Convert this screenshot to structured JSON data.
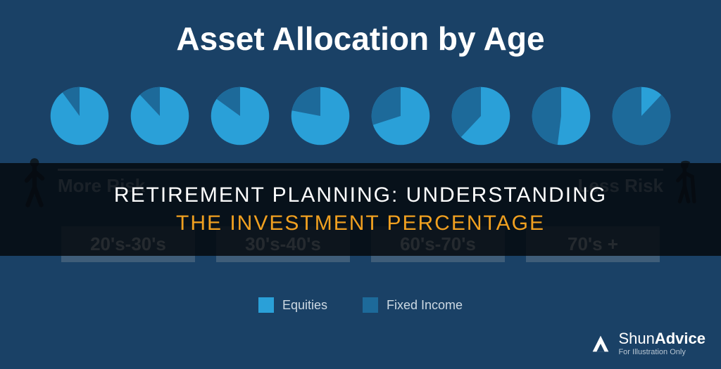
{
  "title": "Asset Allocation by Age",
  "colors": {
    "background": "#1a4166",
    "equities": "#2aa0d8",
    "fixedIncome": "#1d6a9a",
    "cardBg": "#3f5d79",
    "axisText": "#9db2c5",
    "figure": "#0f1b24",
    "overlayBg": "rgba(5,9,14,0.86)",
    "overlayLine1": "#ffffff",
    "overlayLine2": "#f0a020",
    "brand": "#ffffff"
  },
  "pies": [
    {
      "equities": 90,
      "fixedIncome": 10
    },
    {
      "equities": 88,
      "fixedIncome": 12
    },
    {
      "equities": 85,
      "fixedIncome": 15
    },
    {
      "equities": 78,
      "fixedIncome": 22
    },
    {
      "equities": 70,
      "fixedIncome": 30
    },
    {
      "equities": 62,
      "fixedIncome": 38
    },
    {
      "equities": 52,
      "fixedIncome": 48
    },
    {
      "equities": 12,
      "fixedIncome": 88
    }
  ],
  "axis": {
    "left": "More Risk",
    "right": "Less Risk"
  },
  "ageCards": [
    "20's-30's",
    "30's-40's",
    "60's-70's",
    "70's +"
  ],
  "legend": [
    {
      "label": "Equities",
      "colorKey": "equities"
    },
    {
      "label": "Fixed Income",
      "colorKey": "fixedIncome"
    }
  ],
  "overlay": {
    "line1": "RETIREMENT PLANNING: UNDERSTANDING",
    "line2": "THE INVESTMENT PERCENTAGE"
  },
  "brand": {
    "name1": "Shun",
    "name2": "Advice",
    "footnote": "For Illustration Only"
  }
}
